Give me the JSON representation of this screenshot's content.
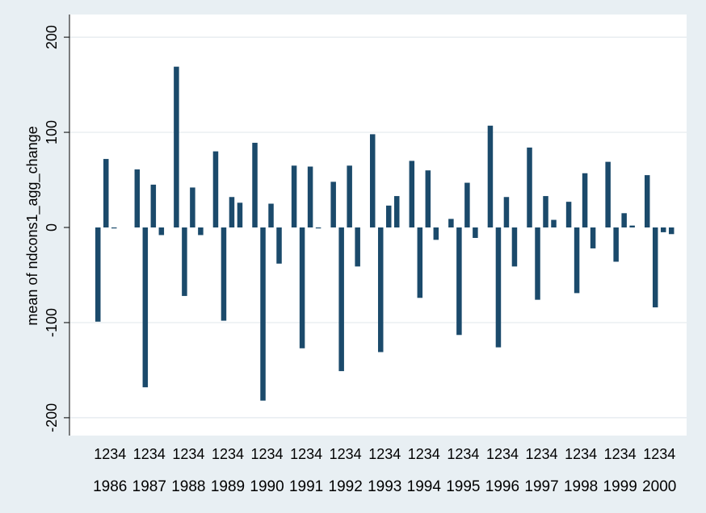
{
  "chart_data": {
    "type": "bar",
    "ylabel": "mean of ndcons1_agg_change",
    "ylim": [
      -220,
      220
    ],
    "yticks": [
      -200,
      -100,
      0,
      100,
      200
    ],
    "years": [
      "1986",
      "1987",
      "1988",
      "1989",
      "1990",
      "1991",
      "1992",
      "1993",
      "1994",
      "1995",
      "1996",
      "1997",
      "1998",
      "1999",
      "2000"
    ],
    "quarters": [
      "1",
      "2",
      "3",
      "4"
    ],
    "values": [
      [
        -99,
        72,
        -1,
        0
      ],
      [
        61,
        -168,
        45,
        -8
      ],
      [
        169,
        -72,
        42,
        -8
      ],
      [
        80,
        -98,
        32,
        26
      ],
      [
        89,
        -182,
        25,
        -38
      ],
      [
        65,
        -127,
        64,
        -1
      ],
      [
        48,
        -151,
        65,
        -41
      ],
      [
        98,
        -131,
        23,
        33
      ],
      [
        70,
        -74,
        60,
        -13
      ],
      [
        9,
        -113,
        47,
        -11
      ],
      [
        107,
        -126,
        32,
        -41
      ],
      [
        84,
        -76,
        33,
        8
      ],
      [
        27,
        -69,
        57,
        -22
      ],
      [
        69,
        -36,
        15,
        2
      ],
      [
        55,
        -84,
        -5,
        -7
      ]
    ],
    "bar_color": "#1b4a6b",
    "background_color": "#e8eff3",
    "plot_color": "#ffffff",
    "grid": true
  }
}
